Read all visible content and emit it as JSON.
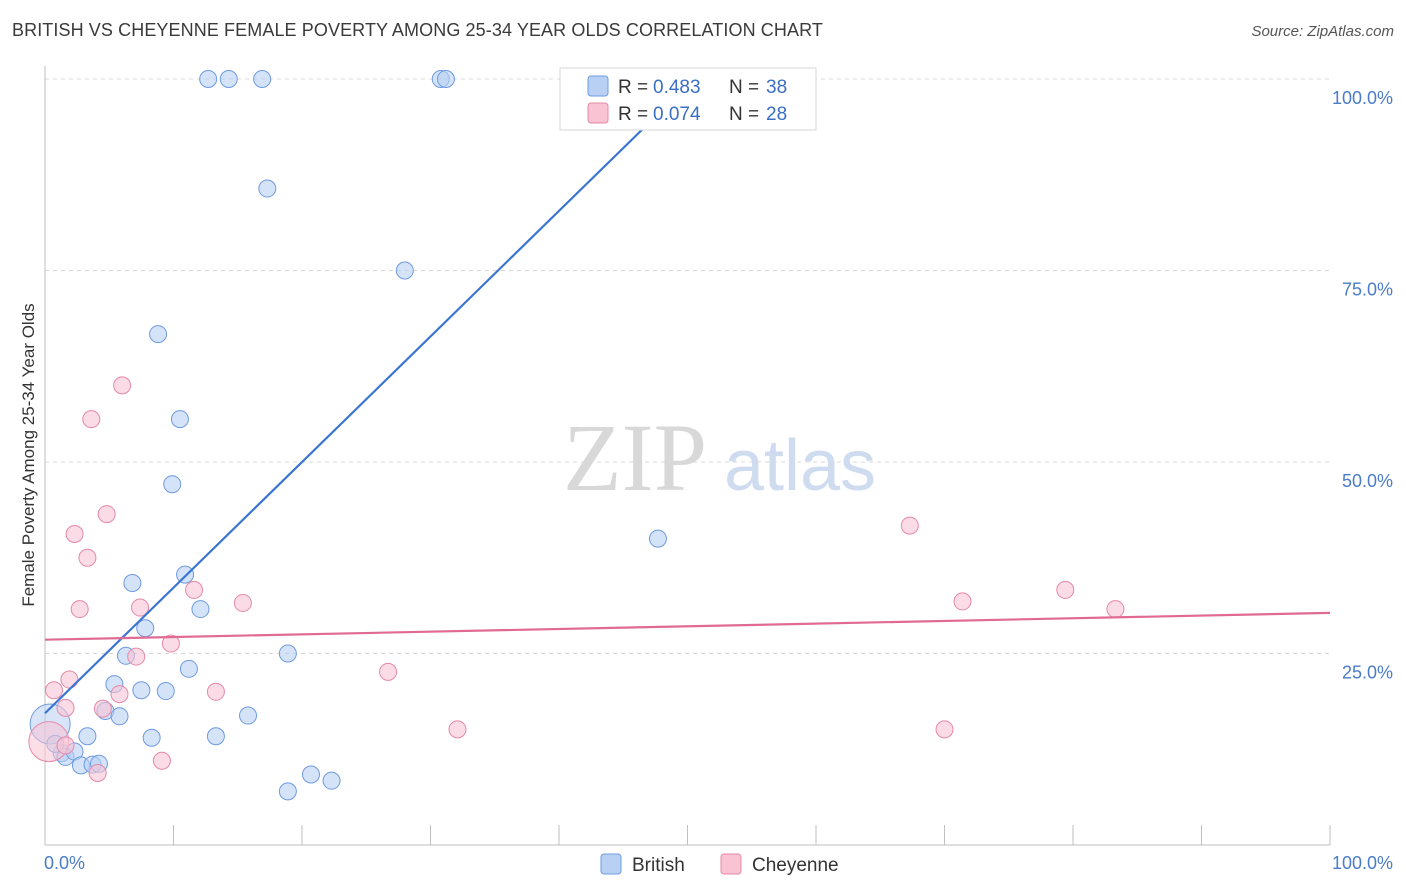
{
  "title": "BRITISH VS CHEYENNE FEMALE POVERTY AMONG 25-34 YEAR OLDS CORRELATION CHART",
  "source": "Source: ZipAtlas.com",
  "watermark": {
    "zip": "ZIP",
    "atlas": "atlas"
  },
  "legend": {
    "r_label": "R =",
    "n_label": "N =",
    "items": [
      {
        "name": "British",
        "r": "0.483",
        "n": "38",
        "fill": "#b8d0f4",
        "stroke": "#6f9be0"
      },
      {
        "name": "Cheyenne",
        "r": "0.074",
        "n": "28",
        "fill": "#f9c3d3",
        "stroke": "#e58aa7"
      }
    ]
  },
  "colors": {
    "british_line": "#3a75d1",
    "cheyenne_line": "#e06a93",
    "tick_text": "#4a7cc7",
    "grid": "#d8d8d8"
  },
  "chart_data": {
    "type": "scatter",
    "ylabel": "Female Poverty Among 25-34 Year Olds",
    "xlim": [
      0,
      100
    ],
    "ylim": [
      0,
      100
    ],
    "x_tick_labels": [
      "0.0%",
      "100.0%"
    ],
    "y_ticks": [
      {
        "value": 25,
        "label": "25.0%"
      },
      {
        "value": 50,
        "label": "50.0%"
      },
      {
        "value": 75,
        "label": "75.0%"
      },
      {
        "value": 100,
        "label": "100.0%"
      }
    ],
    "series": [
      {
        "name": "British",
        "trend": {
          "x": [
            0,
            50.5
          ],
          "y": [
            17.2,
            100
          ]
        },
        "points": [
          {
            "x": 0.4,
            "y": 15.8,
            "big": true
          },
          {
            "x": 1.3,
            "y": 12.0
          },
          {
            "x": 1.6,
            "y": 11.5
          },
          {
            "x": 2.3,
            "y": 12.2
          },
          {
            "x": 2.8,
            "y": 10.4
          },
          {
            "x": 3.3,
            "y": 14.2
          },
          {
            "x": 3.7,
            "y": 10.5
          },
          {
            "x": 4.2,
            "y": 10.6
          },
          {
            "x": 4.7,
            "y": 17.5
          },
          {
            "x": 5.4,
            "y": 21.0
          },
          {
            "x": 5.8,
            "y": 16.8
          },
          {
            "x": 6.3,
            "y": 24.7
          },
          {
            "x": 6.8,
            "y": 34.2
          },
          {
            "x": 7.5,
            "y": 20.2
          },
          {
            "x": 7.8,
            "y": 28.3
          },
          {
            "x": 8.3,
            "y": 14.0
          },
          {
            "x": 8.8,
            "y": 66.7
          },
          {
            "x": 9.4,
            "y": 20.1
          },
          {
            "x": 9.9,
            "y": 47.1
          },
          {
            "x": 10.5,
            "y": 55.6
          },
          {
            "x": 10.9,
            "y": 35.3
          },
          {
            "x": 11.2,
            "y": 23.0
          },
          {
            "x": 12.1,
            "y": 30.8
          },
          {
            "x": 12.7,
            "y": 100
          },
          {
            "x": 13.3,
            "y": 14.2
          },
          {
            "x": 14.3,
            "y": 100
          },
          {
            "x": 15.8,
            "y": 16.9
          },
          {
            "x": 16.9,
            "y": 100
          },
          {
            "x": 17.3,
            "y": 85.7
          },
          {
            "x": 18.9,
            "y": 7.0
          },
          {
            "x": 18.9,
            "y": 25.0
          },
          {
            "x": 20.7,
            "y": 9.2
          },
          {
            "x": 22.3,
            "y": 8.4
          },
          {
            "x": 28.0,
            "y": 75.0
          },
          {
            "x": 30.8,
            "y": 100
          },
          {
            "x": 31.2,
            "y": 100
          },
          {
            "x": 47.7,
            "y": 40.0
          },
          {
            "x": 0.8,
            "y": 13.2
          }
        ]
      },
      {
        "name": "Cheyenne",
        "trend": {
          "x": [
            0,
            100
          ],
          "y": [
            26.8,
            30.3
          ]
        },
        "points": [
          {
            "x": 0.3,
            "y": 13.5,
            "big": true
          },
          {
            "x": 0.7,
            "y": 20.2
          },
          {
            "x": 1.6,
            "y": 13.0
          },
          {
            "x": 1.6,
            "y": 17.9
          },
          {
            "x": 1.9,
            "y": 21.6
          },
          {
            "x": 2.3,
            "y": 40.6
          },
          {
            "x": 2.7,
            "y": 30.8
          },
          {
            "x": 3.3,
            "y": 37.5
          },
          {
            "x": 3.6,
            "y": 55.6
          },
          {
            "x": 4.1,
            "y": 9.4
          },
          {
            "x": 4.5,
            "y": 17.8
          },
          {
            "x": 4.8,
            "y": 43.2
          },
          {
            "x": 5.8,
            "y": 19.7
          },
          {
            "x": 6.0,
            "y": 60.0
          },
          {
            "x": 7.1,
            "y": 24.6
          },
          {
            "x": 7.4,
            "y": 31.0
          },
          {
            "x": 9.1,
            "y": 11.0
          },
          {
            "x": 9.8,
            "y": 26.3
          },
          {
            "x": 11.6,
            "y": 33.3
          },
          {
            "x": 13.3,
            "y": 20.0
          },
          {
            "x": 15.4,
            "y": 31.6
          },
          {
            "x": 26.7,
            "y": 22.6
          },
          {
            "x": 32.1,
            "y": 15.1
          },
          {
            "x": 67.3,
            "y": 41.7
          },
          {
            "x": 70.0,
            "y": 15.1
          },
          {
            "x": 71.4,
            "y": 31.8
          },
          {
            "x": 79.4,
            "y": 33.3
          },
          {
            "x": 83.3,
            "y": 30.8
          }
        ]
      }
    ]
  }
}
